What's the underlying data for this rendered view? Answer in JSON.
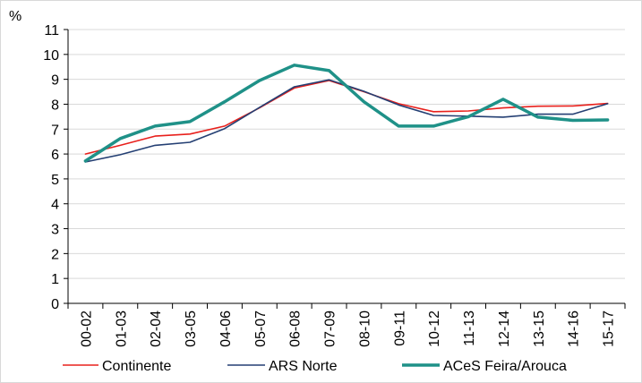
{
  "chart_data": {
    "type": "line",
    "title": "",
    "ylabel": "%",
    "xlabel": "",
    "ylim": [
      0,
      11
    ],
    "yticks": [
      0,
      1,
      2,
      3,
      4,
      5,
      6,
      7,
      8,
      9,
      10,
      11
    ],
    "categories": [
      "00-02",
      "01-03",
      "02-04",
      "03-05",
      "04-06",
      "05-07",
      "06-08",
      "07-09",
      "08-10",
      "09-11",
      "10-12",
      "11-13",
      "12-14",
      "13-15",
      "14-16",
      "15-17"
    ],
    "grid": "horizontal",
    "legend_position": "bottom",
    "series": [
      {
        "name": "Continente",
        "color": "#e8201c",
        "line_width": "thin",
        "values": [
          6.0,
          6.35,
          6.72,
          6.8,
          7.12,
          7.85,
          8.65,
          8.95,
          8.5,
          8.02,
          7.7,
          7.73,
          7.85,
          7.92,
          7.93,
          8.03
        ]
      },
      {
        "name": "ARS Norte",
        "color": "#243f73",
        "line_width": "thin",
        "values": [
          5.68,
          5.97,
          6.35,
          6.47,
          7.02,
          7.87,
          8.7,
          8.98,
          8.52,
          7.97,
          7.55,
          7.52,
          7.48,
          7.6,
          7.6,
          8.02
        ]
      },
      {
        "name": "ACeS Feira/Arouca",
        "color": "#1f9188",
        "line_width": "thick",
        "values": [
          5.72,
          6.62,
          7.12,
          7.3,
          8.1,
          8.95,
          9.57,
          9.35,
          8.1,
          7.12,
          7.12,
          7.5,
          8.2,
          7.48,
          7.35,
          7.37
        ]
      }
    ]
  }
}
